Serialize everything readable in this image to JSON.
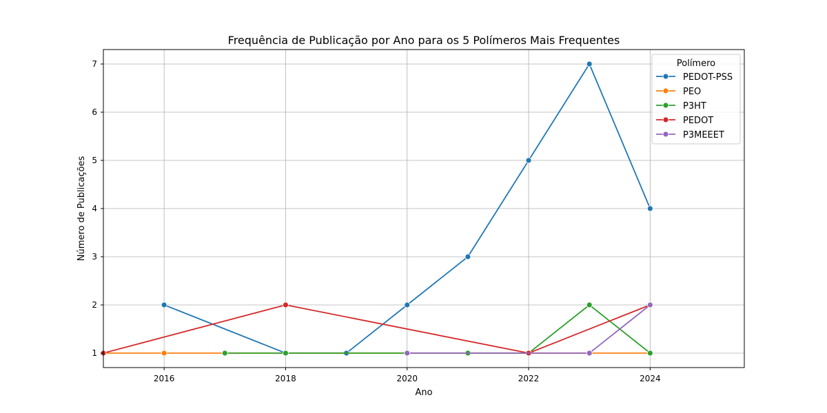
{
  "chart_data": {
    "type": "line",
    "title": "Frequência de Publicação por Ano para os 5 Polímeros Mais Frequentes",
    "xlabel": "Ano",
    "ylabel": "Número de Publicações",
    "xlim": [
      2015,
      2025.55
    ],
    "ylim": [
      0.7,
      7.3
    ],
    "xticks": [
      2016,
      2018,
      2020,
      2022,
      2024
    ],
    "yticks": [
      1,
      2,
      3,
      4,
      5,
      6,
      7
    ],
    "grid": true,
    "legend": {
      "title": "Polímero",
      "position": "top-right"
    },
    "series": [
      {
        "name": "PEDOT-PSS",
        "color": "#1f77b4",
        "x": [
          2016,
          2018,
          2019,
          2020,
          2021,
          2022,
          2023,
          2024
        ],
        "y": [
          2,
          1,
          1,
          2,
          3,
          5,
          7,
          4
        ]
      },
      {
        "name": "PEO",
        "color": "#ff7f0e",
        "x": [
          2015,
          2016,
          2017,
          2024
        ],
        "y": [
          1,
          1,
          1,
          1
        ]
      },
      {
        "name": "P3HT",
        "color": "#2ca02c",
        "x": [
          2017,
          2018,
          2021,
          2022,
          2023,
          2024
        ],
        "y": [
          1,
          1,
          1,
          1,
          2,
          1
        ]
      },
      {
        "name": "PEDOT",
        "color": "#d62728",
        "x": [
          2015,
          2018,
          2022,
          2024
        ],
        "y": [
          1,
          2,
          1,
          2
        ]
      },
      {
        "name": "P3MEEET",
        "color": "#9467bd",
        "x": [
          2020,
          2023,
          2024
        ],
        "y": [
          1,
          1,
          2
        ]
      }
    ]
  }
}
